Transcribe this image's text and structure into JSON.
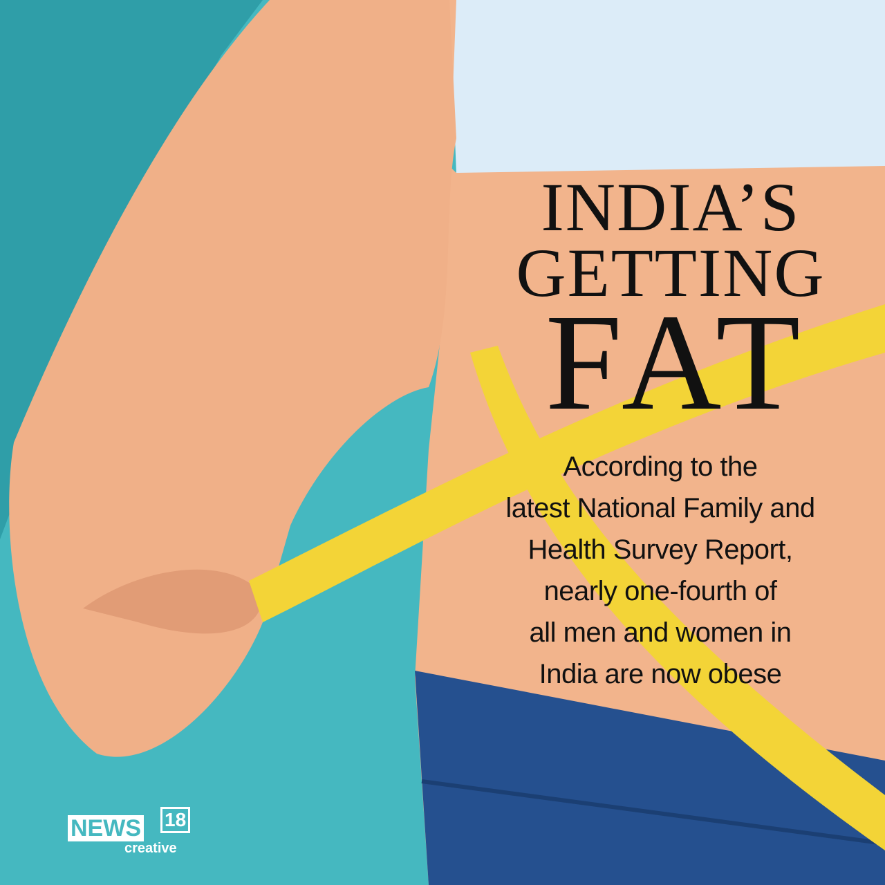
{
  "headline": {
    "line1": "INDIA’S",
    "line2": "GETTING",
    "line3": "FAT"
  },
  "body_text": [
    "According to the",
    "latest National Family and",
    "Health Survey Report,",
    "nearly one-fourth of",
    "all men and women in",
    "India are now obese"
  ],
  "logo": {
    "name": "NEWS",
    "number": "18",
    "sub": "creative"
  },
  "colors": {
    "background": "#45b8c0",
    "skin": "#f2b48c",
    "shirt": "#dcecf8",
    "jeans": "#25508f",
    "tape": "#f3d437"
  }
}
